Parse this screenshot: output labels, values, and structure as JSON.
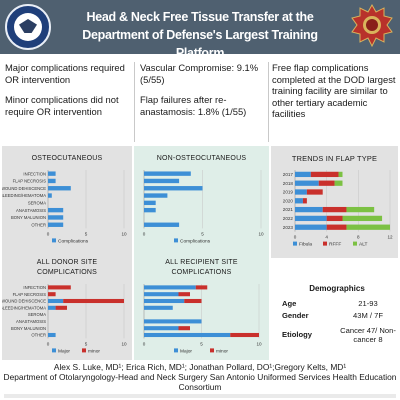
{
  "header": {
    "title": "Head & Neck Free Tissue Transfer at the Department of Defense's Largest Training Platform"
  },
  "findings": {
    "col1": [
      "Major complications required OR intervention",
      "Minor complications did not require OR intervention"
    ],
    "col2": [
      "Vascular Compromise: 9.1% (5/55)",
      "Flap failures after re-anastamosis: 1.8% (1/55)"
    ],
    "col3": [
      "Free flap complications completed at the DOD largest training facility are similar to other tertiary academic facilities"
    ]
  },
  "colors": {
    "header": "#4f6070",
    "blue": "#3d8fd6",
    "red": "#c9302c",
    "green": "#7cc143",
    "panel_gray": "#e2e2e2",
    "panel_green": "#dfeee8"
  },
  "chart_data": [
    {
      "type": "bar",
      "orientation": "horizontal",
      "title": "OSTEOCUTANEOUS",
      "categories": [
        "INFECTION",
        "FLAP NECROSIS",
        "WOUND DEHISCENCE",
        "BLEEDING/HEMATOMA",
        "SEROMA",
        "ANASTAMOSIS",
        "BONY MALUNION",
        "OTHER"
      ],
      "series": [
        {
          "name": "Complications",
          "values": [
            1,
            1,
            3,
            0.5,
            0,
            2,
            2,
            2
          ]
        }
      ],
      "xlim": [
        0,
        10
      ],
      "xticks": [
        "0",
        "5",
        "10"
      ]
    },
    {
      "type": "bar",
      "orientation": "horizontal",
      "title": "NON-OSTEOCUTANEOUS",
      "categories": [
        "INFECTION",
        "FLAP NECROSIS",
        "WOUND DEHISCENCE",
        "BLEEDING/HEMATOMA",
        "SEROMA",
        "ANASTAMOSIS",
        "BONY MALUNION",
        "OTHER"
      ],
      "series": [
        {
          "name": "Complications",
          "values": [
            4,
            3,
            5,
            2,
            1,
            1,
            0,
            3
          ]
        }
      ],
      "xlim": [
        0,
        10
      ],
      "xticks": [
        "0",
        "5",
        "10"
      ]
    },
    {
      "type": "bar",
      "orientation": "horizontal",
      "stacked": true,
      "title": "TRENDS IN FLAP TYPE",
      "categories": [
        "2017",
        "2018",
        "2019",
        "2020",
        "2021",
        "2022",
        "2023"
      ],
      "series": [
        {
          "name": "Fibula",
          "values": [
            2,
            3,
            1.5,
            1,
            3.5,
            4,
            4
          ]
        },
        {
          "name": "RFFF",
          "values": [
            3.5,
            2,
            2,
            0.5,
            3,
            2,
            2.5
          ]
        },
        {
          "name": "ALT",
          "values": [
            0.5,
            1,
            0,
            0,
            3.5,
            5,
            5.5
          ]
        }
      ],
      "xlim": [
        0,
        12
      ],
      "xticks": [
        "0",
        "4",
        "8",
        "12"
      ]
    },
    {
      "type": "bar",
      "orientation": "horizontal",
      "stacked": true,
      "title": "ALL DONOR SITE COMPLICATIONS",
      "categories": [
        "INFECTION",
        "FLAP NECROSIS",
        "WOUND DEHISCENCE",
        "BLEEDING/HEMATOMA",
        "SEROMA",
        "ANASTAMOSIS",
        "BONY MALUNION",
        "OTHER"
      ],
      "series": [
        {
          "name": "Major",
          "values": [
            0,
            0,
            2,
            1,
            0,
            0,
            0,
            1
          ]
        },
        {
          "name": "minor",
          "values": [
            3,
            1,
            8,
            1.5,
            0,
            0,
            0,
            0
          ]
        }
      ],
      "xlim": [
        0,
        10
      ],
      "xticks": [
        "0",
        "5",
        "10"
      ]
    },
    {
      "type": "bar",
      "orientation": "horizontal",
      "stacked": true,
      "title": "ALL RECIPIENT SITE COMPLICATIONS",
      "categories": [
        "INFECTION",
        "FLAP NECROSIS",
        "WOUND DEHISCENCE",
        "BLEEDING/HEMATOMA",
        "SEROMA",
        "ANASTAMOSIS",
        "BONY MALUNION",
        "OTHER"
      ],
      "series": [
        {
          "name": "Major",
          "values": [
            4.5,
            3,
            3.5,
            2.5,
            0,
            5,
            3,
            7.5
          ]
        },
        {
          "name": "minor",
          "values": [
            1,
            1,
            1.5,
            0,
            0,
            0,
            1,
            2.5
          ]
        }
      ],
      "xlim": [
        0,
        10
      ],
      "xticks": [
        "0",
        "5",
        "10"
      ]
    }
  ],
  "demographics": {
    "title": "Demographics",
    "age_label": "Age",
    "age_value": "21-93",
    "gender_label": "Gender",
    "gender_value": "43M / 7F",
    "etiology_label": "Etiology",
    "etiology_value": "Cancer 47/ Non-cancer 8"
  },
  "authors": {
    "names": "Alex S. Luke, MD¹; Erica Rich, MD¹; Jonathan Pollard, DO¹;Gregory Kelts, MD¹",
    "affiliation": "Department of Otolaryngology-Head and Neck Surgery San Antonio Uniformed Services Health Education Consortium"
  }
}
